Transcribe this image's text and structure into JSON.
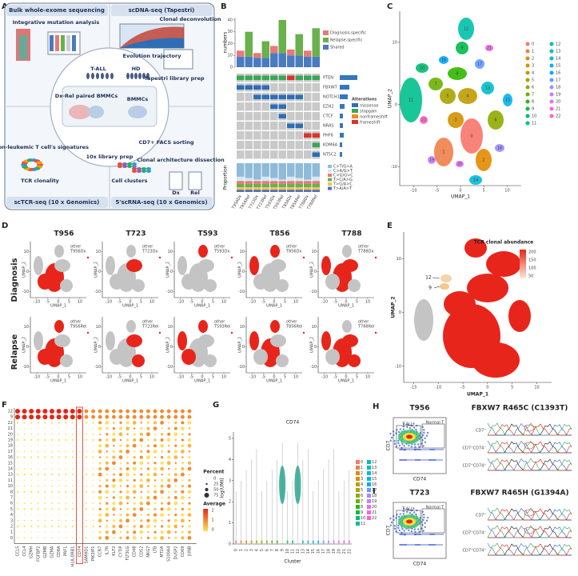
{
  "A": {
    "label": "A",
    "headers": [
      "Bulk whole-exome sequencing",
      "scDNA-seq (Tapestri)",
      "scTCR-seq (10 x Genomics)",
      "5'scRNA-seq (10 x Genomics)"
    ],
    "steps": [
      "Integrative mutation analysis",
      "Evolution trajectory",
      "Clonal deconvolution",
      "Tapestri library prep",
      "T-ALL",
      "HD",
      "Dx-Rel paired BMMCs",
      "BMMCs",
      "CD7+ FACS sorting",
      "10x library prep",
      "non-leukemic T cell's signatures",
      "TCR clonality",
      "Cell clusters",
      "Clonal architecture dissection",
      "Dx",
      "Rel"
    ]
  },
  "B": {
    "label": "B",
    "ylabel": "numbers",
    "ylim": [
      0,
      42
    ],
    "yticks": [
      0,
      10,
      20,
      30,
      40
    ],
    "samples": [
      "T956Dx",
      "T956Rel",
      "T723Dx",
      "T723Rel",
      "T593Dx",
      "T593Rel",
      "T856Dx",
      "T856Rel",
      "T788Dx",
      "T788Rel"
    ],
    "series": [
      {
        "name": "Diagnosis-specific",
        "color": "#e8787a",
        "values": [
          5,
          0,
          4,
          0,
          6,
          0,
          5,
          0,
          5,
          0
        ]
      },
      {
        "name": "Relapse-specific",
        "color": "#6ab04c",
        "values": [
          0,
          21,
          0,
          14,
          0,
          28,
          0,
          18,
          0,
          24
        ]
      },
      {
        "name": "Shared",
        "color": "#4a7bbf",
        "values": [
          9,
          9,
          8,
          8,
          12,
          12,
          10,
          10,
          9,
          9
        ]
      }
    ],
    "genes": [
      "PTEN",
      "FBXW7",
      "NOTCH1",
      "EZH2",
      "CTCF",
      "NRAS",
      "PHF6",
      "KDM6A",
      "NT5C2"
    ],
    "legend_title": "Alterations",
    "alterations": [
      {
        "name": "missense",
        "color": "#2f6db5"
      },
      {
        "name": "stopgain",
        "color": "#3aa655"
      },
      {
        "name": "nonframeshift",
        "color": "#f08a24"
      },
      {
        "name": "frameshift",
        "color": "#d9342b"
      }
    ],
    "oncoprint": [
      [
        "stopgain",
        "stopgain",
        "stopgain",
        "stopgain",
        "stopgain",
        "stopgain",
        "frameshift",
        "stopgain",
        "stopgain",
        "stopgain"
      ],
      [
        "missense",
        "missense",
        "missense",
        "missense",
        null,
        null,
        null,
        null,
        null,
        null
      ],
      [
        null,
        null,
        "missense",
        "missense",
        "missense",
        "missense",
        "missense",
        "missense",
        null,
        null
      ],
      [
        null,
        null,
        null,
        null,
        "missense",
        "missense",
        null,
        null,
        null,
        null
      ],
      [
        null,
        null,
        null,
        null,
        null,
        "missense",
        null,
        null,
        null,
        null
      ],
      [
        null,
        null,
        null,
        null,
        null,
        null,
        "missense",
        "missense",
        null,
        null
      ],
      [
        null,
        null,
        null,
        null,
        null,
        null,
        null,
        null,
        "frameshift",
        "frameshift"
      ],
      [
        null,
        null,
        null,
        null,
        null,
        null,
        null,
        null,
        null,
        "stopgain"
      ],
      [
        null,
        null,
        null,
        null,
        null,
        null,
        null,
        null,
        null,
        "missense"
      ]
    ],
    "proportion_label": "Proportion",
    "substitutions": [
      "C>T/G>A",
      "C>A/G>T",
      "C>G/G>C",
      "T>C/A>G",
      "T>G/A>C",
      "T>A/A>T"
    ]
  },
  "C": {
    "label": "C",
    "xlabel": "UMAP_1",
    "ylabel": "UMAP_2",
    "xticks": [
      -10,
      -5,
      0,
      5,
      10
    ],
    "yticks": [
      -10,
      0,
      10
    ],
    "clusters": [
      "0",
      "1",
      "2",
      "3",
      "4",
      "5",
      "6",
      "7",
      "8",
      "9",
      "10",
      "11",
      "12",
      "13",
      "14",
      "15",
      "16",
      "17",
      "18",
      "19",
      "20",
      "21",
      "22"
    ],
    "colors": [
      "#f8766d",
      "#ef7f49",
      "#e38900",
      "#d39200",
      "#c09b00",
      "#a9a400",
      "#8eab00",
      "#6bb100",
      "#31b700",
      "#00bb4e",
      "#00be70",
      "#00c08d",
      "#00c1a9",
      "#00bfc4",
      "#00bbdc",
      "#00b4f0",
      "#00a9ff",
      "#619cff",
      "#9f8cff",
      "#c77cff",
      "#e56ef4",
      "#f763e0",
      "#ff61c6"
    ]
  },
  "D": {
    "label": "D",
    "rows": [
      "Diagnosis",
      "Relapse"
    ],
    "columns": [
      {
        "title": "T956",
        "dx": "T956Dx",
        "rel": "T956Rel"
      },
      {
        "title": "T723",
        "dx": "T723Dx",
        "rel": "T723Rel"
      },
      {
        "title": "T593",
        "dx": "T593Dx",
        "rel": "T593Rel"
      },
      {
        "title": "T856",
        "dx": "T856Dx",
        "rel": "T856Rel"
      },
      {
        "title": "T788",
        "dx": "T788Dx",
        "rel": "T788Rel"
      }
    ],
    "other": "other",
    "xlabel": "UMAP_1",
    "ylabel": "UMAP_2",
    "xticks": [
      -10,
      -5,
      0,
      5,
      10
    ],
    "yticks": [
      -10,
      0,
      10
    ]
  },
  "E": {
    "label": "E",
    "legend_title": "TCR clonal abundance",
    "legend_ticks": [
      200,
      150,
      100,
      50
    ],
    "xlabel": "UMAP_1",
    "ylabel": "UMAP_2",
    "xticks": [
      -15,
      -10,
      -5,
      0,
      5,
      10
    ],
    "yticks": [
      -10,
      0,
      10
    ],
    "annotations": [
      "12",
      "9"
    ]
  },
  "F": {
    "label": "F",
    "rows": [
      "12",
      "9",
      "22",
      "21",
      "20",
      "19",
      "18",
      "17",
      "16",
      "15",
      "14",
      "13",
      "11",
      "10",
      "8",
      "7",
      "6",
      "5",
      "4",
      "3",
      "2",
      "1",
      "0"
    ],
    "genes": [
      "CCL5",
      "CCL4",
      "GZMH",
      "FGFBP2",
      "GZMB",
      "GZMA",
      "CD8A",
      "PRF1",
      "HLA-DRB1",
      "CD74",
      "SAMHD1",
      "PIK3IP1",
      "CCR7",
      "IL7R",
      "KLF2",
      "CYTIP",
      "FLT3LG",
      "CD48",
      "CD52",
      "NKG7",
      "LTB",
      "MT2A",
      "S100A4",
      "DUSP2",
      "CD69",
      "JUNB"
    ],
    "percent_title": "Percent",
    "percent_ticks": [
      0,
      25,
      50,
      75
    ],
    "average_title": "Average",
    "average_ticks": [
      2,
      1,
      0
    ]
  },
  "G": {
    "label": "G",
    "title": "CD74",
    "ylabel": "log(UMI)",
    "xlabel": "Cluster",
    "yticks": [
      0,
      1,
      2,
      3,
      4,
      5
    ]
  },
  "H": {
    "label": "H",
    "sample": "T956",
    "mutation": "FBXW7 R465C (C1393T)",
    "xlabel": "CD74",
    "ylabel": "CD7",
    "gates": [
      "T-ALL",
      "Normal T"
    ],
    "tracks": [
      "CD7⁺",
      "CD7⁺CD74⁻",
      "CD7⁺CD74⁺"
    ]
  },
  "I": {
    "label": "I",
    "sample": "T723",
    "mutation": "FBXW7 R465H (G1394A)",
    "xlabel": "CD74",
    "ylabel": "CD7",
    "gates": [
      "T-ALL",
      "Normal T"
    ],
    "tracks": [
      "CD7⁺",
      "CD7⁺CD74⁻",
      "CD7⁺CD74⁺"
    ]
  }
}
